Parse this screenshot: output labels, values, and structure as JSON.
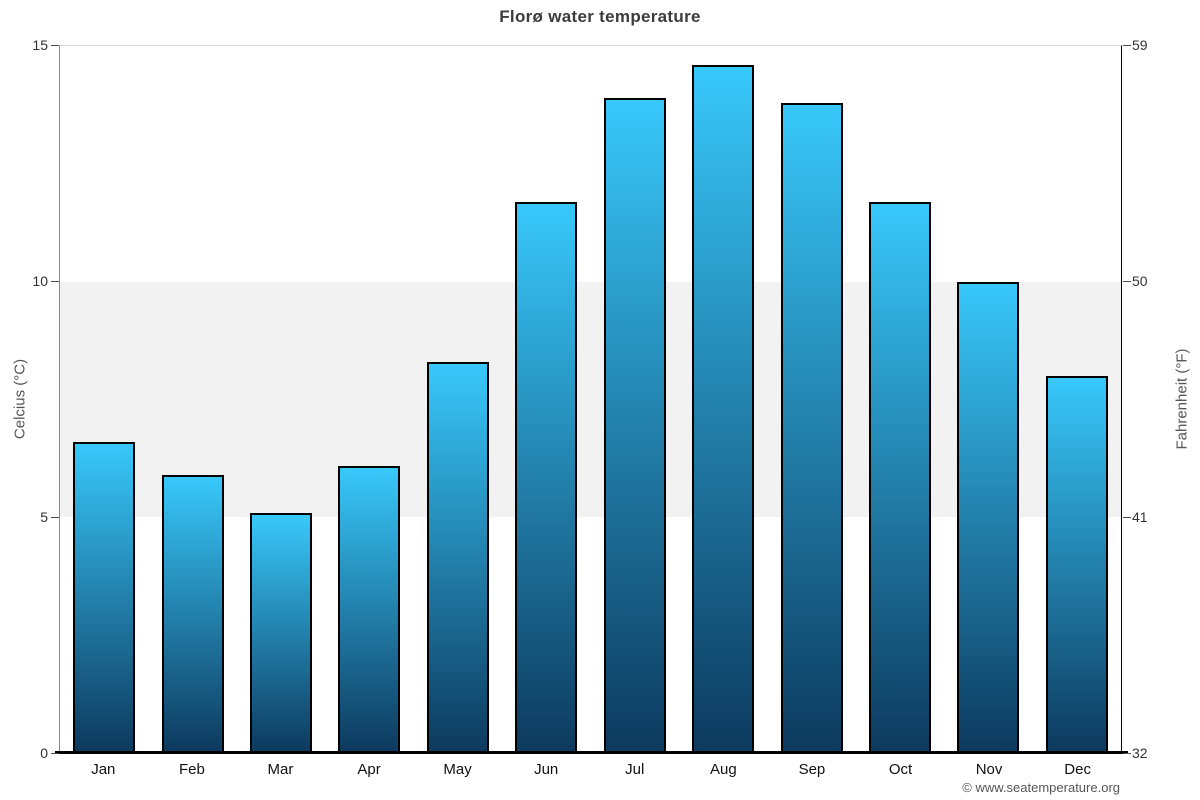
{
  "title": "Florø water temperature",
  "footer": {
    "credit": "© www.seatemperature.org"
  },
  "colors": {
    "bar_top": "#38c8fa",
    "bar_bottom": "#0d3a5e",
    "bar_border": "#000000",
    "band": "#f2f2f2",
    "title_text": "#3c3c3c",
    "axis_title_text": "#555555"
  },
  "chart_data": {
    "type": "bar",
    "title": "Florø water temperature",
    "categories": [
      "Jan",
      "Feb",
      "Mar",
      "Apr",
      "May",
      "Jun",
      "Jul",
      "Aug",
      "Sep",
      "Oct",
      "Nov",
      "Dec"
    ],
    "values": [
      6.6,
      5.9,
      5.1,
      6.1,
      8.3,
      11.7,
      13.9,
      14.6,
      13.8,
      11.7,
      10.0,
      8.0
    ],
    "ylabel_left": "Celcius (°C)",
    "ylabel_right": "Fahrenheit (°F)",
    "ylim": [
      0,
      15
    ],
    "ylim_right": [
      32,
      59
    ],
    "yticks_left": [
      0,
      5,
      10,
      15
    ],
    "yticks_right": [
      32,
      41,
      50,
      59
    ],
    "band": {
      "from": 5,
      "to": 10
    },
    "grid": "band-only",
    "legend": "none"
  }
}
